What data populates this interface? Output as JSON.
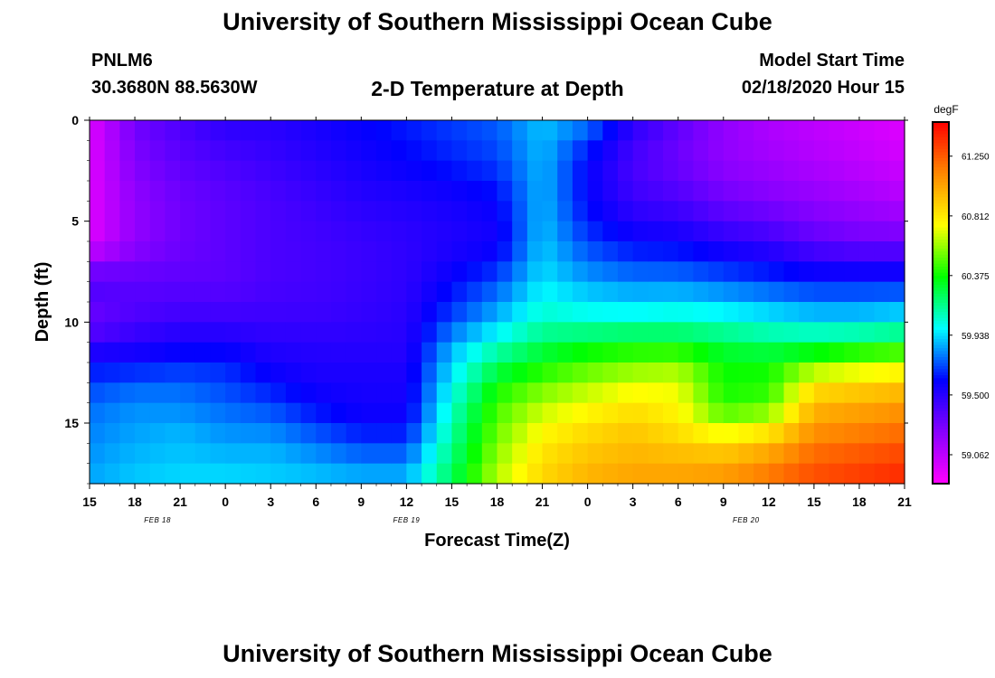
{
  "header": {
    "title": "University of Southern Mississippi Ocean Cube",
    "station": "PNLM6",
    "location": "30.3680N 88.5630W",
    "plot_title": "2-D Temperature at Depth",
    "model_start_label": "Model Start Time",
    "model_start_value": "02/18/2020 Hour 15",
    "footer_title": "University of Southern Mississippi Ocean Cube"
  },
  "chart_data": {
    "type": "heatmap",
    "title": "2-D Temperature at Depth",
    "xlabel": "Forecast Time(Z)",
    "ylabel": "Depth (ft)",
    "x_start_hour": 15,
    "x_end_hour": 69,
    "x_ticks": [
      {
        "hour": 15,
        "label": "15"
      },
      {
        "hour": 18,
        "label": "18"
      },
      {
        "hour": 21,
        "label": "21"
      },
      {
        "hour": 24,
        "label": "0"
      },
      {
        "hour": 27,
        "label": "3"
      },
      {
        "hour": 30,
        "label": "6"
      },
      {
        "hour": 33,
        "label": "9"
      },
      {
        "hour": 36,
        "label": "12"
      },
      {
        "hour": 39,
        "label": "15"
      },
      {
        "hour": 42,
        "label": "18"
      },
      {
        "hour": 45,
        "label": "21"
      },
      {
        "hour": 48,
        "label": "0"
      },
      {
        "hour": 51,
        "label": "3"
      },
      {
        "hour": 54,
        "label": "6"
      },
      {
        "hour": 57,
        "label": "9"
      },
      {
        "hour": 60,
        "label": "12"
      },
      {
        "hour": 63,
        "label": "15"
      },
      {
        "hour": 66,
        "label": "18"
      },
      {
        "hour": 69,
        "label": "21"
      }
    ],
    "date_labels": [
      {
        "hour": 19.5,
        "label": "FEB 18"
      },
      {
        "hour": 36,
        "label": "FEB 19"
      },
      {
        "hour": 58.5,
        "label": "FEB 20"
      }
    ],
    "ylim": [
      0,
      18
    ],
    "y_ticks": [
      0,
      5,
      10,
      15
    ],
    "colorbar": {
      "unit": "degF",
      "min": 58.85,
      "max": 61.5,
      "tick_values": [
        59.062,
        59.5,
        59.938,
        60.375,
        60.812,
        61.25
      ],
      "tick_labels": [
        "59.062",
        "59.500",
        "59.938",
        "60.375",
        "60.812",
        "61.250"
      ],
      "colors": [
        "#ff00ff",
        "#8800ff",
        "#0000ff",
        "#00ffff",
        "#00ff00",
        "#ffff00",
        "#ff8800",
        "#ff0000"
      ]
    },
    "profile_hours": [
      15,
      18,
      21,
      24,
      27,
      30,
      33,
      36,
      39,
      42,
      45,
      48,
      51,
      54,
      57,
      60,
      63,
      66,
      69
    ],
    "profile_depths": [
      0,
      2,
      4,
      6,
      8,
      10,
      11,
      12,
      13,
      14,
      15,
      16,
      17,
      18
    ],
    "temperature": [
      [
        58.95,
        58.95,
        58.95,
        58.95,
        59.4,
        59.3,
        59.45,
        59.6,
        59.7,
        59.75,
        59.8,
        59.8,
        59.85,
        59.85
      ],
      [
        59.3,
        59.25,
        59.2,
        59.2,
        59.35,
        59.4,
        59.5,
        59.6,
        59.75,
        59.8,
        59.85,
        59.85,
        59.9,
        59.9
      ],
      [
        59.4,
        59.35,
        59.3,
        59.3,
        59.35,
        59.45,
        59.55,
        59.65,
        59.75,
        59.8,
        59.85,
        59.9,
        59.9,
        59.95
      ],
      [
        59.5,
        59.4,
        59.35,
        59.35,
        59.35,
        59.45,
        59.55,
        59.65,
        59.7,
        59.75,
        59.8,
        59.85,
        59.9,
        59.95
      ],
      [
        59.5,
        59.45,
        59.4,
        59.4,
        59.4,
        59.45,
        59.5,
        59.55,
        59.62,
        59.7,
        59.78,
        59.85,
        59.9,
        59.92
      ],
      [
        59.55,
        59.5,
        59.45,
        59.42,
        59.42,
        59.45,
        59.5,
        59.52,
        59.55,
        59.6,
        59.68,
        59.78,
        59.85,
        59.92
      ],
      [
        59.6,
        59.55,
        59.5,
        59.45,
        59.45,
        59.47,
        59.5,
        59.52,
        59.55,
        59.55,
        59.6,
        59.7,
        59.8,
        59.9
      ],
      [
        59.65,
        59.6,
        59.52,
        59.48,
        59.48,
        59.5,
        59.5,
        59.52,
        59.55,
        59.55,
        59.6,
        59.7,
        59.8,
        59.9
      ],
      [
        59.7,
        59.65,
        59.55,
        59.52,
        59.6,
        59.72,
        59.85,
        59.92,
        59.98,
        60.05,
        60.1,
        60.15,
        60.2,
        60.25
      ],
      [
        59.75,
        59.7,
        59.6,
        59.55,
        59.72,
        59.9,
        60.05,
        60.2,
        60.35,
        60.45,
        60.5,
        60.55,
        60.6,
        60.65
      ],
      [
        59.9,
        59.88,
        59.88,
        59.9,
        59.95,
        60.08,
        60.22,
        60.35,
        60.5,
        60.62,
        60.72,
        60.8,
        60.85,
        60.88
      ],
      [
        59.8,
        59.6,
        59.6,
        59.7,
        59.85,
        60.05,
        60.3,
        60.45,
        60.6,
        60.72,
        60.82,
        60.9,
        60.95,
        61.0
      ],
      [
        59.5,
        59.4,
        59.45,
        59.6,
        59.8,
        60.05,
        60.35,
        60.5,
        60.7,
        60.8,
        60.9,
        60.95,
        61.0,
        61.05
      ],
      [
        59.35,
        59.3,
        59.4,
        59.58,
        59.8,
        60.08,
        60.32,
        60.55,
        60.7,
        60.75,
        60.8,
        60.9,
        61.0,
        61.05
      ],
      [
        59.2,
        59.2,
        59.3,
        59.5,
        59.75,
        60.05,
        60.25,
        60.35,
        60.4,
        60.4,
        60.6,
        60.85,
        61.0,
        61.1
      ],
      [
        59.1,
        59.15,
        59.25,
        59.45,
        59.7,
        60.0,
        60.2,
        60.35,
        60.42,
        60.45,
        60.7,
        60.95,
        61.1,
        61.2
      ],
      [
        59.05,
        59.1,
        59.2,
        59.35,
        59.65,
        59.95,
        60.2,
        60.5,
        60.8,
        60.95,
        61.05,
        61.15,
        61.25,
        61.3
      ],
      [
        59.0,
        59.05,
        59.15,
        59.3,
        59.65,
        59.95,
        60.25,
        60.6,
        60.85,
        61.0,
        61.1,
        61.2,
        61.3,
        61.35
      ],
      [
        58.95,
        59.0,
        59.1,
        59.3,
        59.65,
        60.0,
        60.3,
        60.65,
        60.9,
        61.05,
        61.15,
        61.25,
        61.35,
        61.4
      ]
    ]
  }
}
